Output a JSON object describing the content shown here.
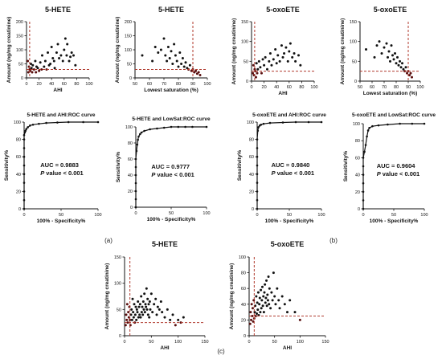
{
  "panel_labels": [
    "(a)",
    "(b)",
    "(c)"
  ],
  "chart_data": [
    {
      "type": "scatter",
      "title": "5-HETE",
      "xlabel": "AHI",
      "ylabel": "Amount (ng/mg creatinine)",
      "xlim": [
        0,
        100
      ],
      "ylim": [
        0,
        200
      ],
      "xticks": [
        "0",
        "20",
        "40",
        "60",
        "80",
        "100"
      ],
      "yticks": [
        "0",
        "50",
        "100",
        "150",
        "200"
      ],
      "cutoff_x": 5,
      "cutoff_y": 30,
      "points": [
        [
          2,
          60
        ],
        [
          3,
          20
        ],
        [
          4,
          40
        ],
        [
          5,
          30
        ],
        [
          6,
          25
        ],
        [
          7,
          50
        ],
        [
          8,
          35
        ],
        [
          9,
          20
        ],
        [
          10,
          45
        ],
        [
          12,
          30
        ],
        [
          14,
          60
        ],
        [
          15,
          20
        ],
        [
          16,
          40
        ],
        [
          18,
          35
        ],
        [
          20,
          25
        ],
        [
          22,
          55
        ],
        [
          24,
          30
        ],
        [
          25,
          80
        ],
        [
          28,
          40
        ],
        [
          30,
          60
        ],
        [
          32,
          30
        ],
        [
          34,
          90
        ],
        [
          36,
          45
        ],
        [
          38,
          50
        ],
        [
          40,
          110
        ],
        [
          42,
          70
        ],
        [
          44,
          60
        ],
        [
          45,
          35
        ],
        [
          48,
          90
        ],
        [
          50,
          120
        ],
        [
          52,
          70
        ],
        [
          55,
          80
        ],
        [
          58,
          60
        ],
        [
          60,
          100
        ],
        [
          62,
          140
        ],
        [
          64,
          80
        ],
        [
          65,
          120
        ],
        [
          68,
          60
        ],
        [
          70,
          75
        ],
        [
          72,
          90
        ],
        [
          75,
          80
        ],
        [
          78,
          45
        ]
      ]
    },
    {
      "type": "scatter",
      "title": "5-HETE",
      "xlabel": "Lowest saturation (%)",
      "ylabel": "Amount (ng/mg creatinine)",
      "xlim": [
        50,
        100
      ],
      "ylim": [
        0,
        200
      ],
      "xticks": [
        "50",
        "60",
        "70",
        "80",
        "90",
        "100"
      ],
      "yticks": [
        "0",
        "50",
        "100",
        "150",
        "200"
      ],
      "cutoff_x": 90,
      "cutoff_y": 30,
      "points": [
        [
          55,
          80
        ],
        [
          62,
          60
        ],
        [
          64,
          110
        ],
        [
          66,
          90
        ],
        [
          68,
          100
        ],
        [
          70,
          140
        ],
        [
          71,
          80
        ],
        [
          72,
          60
        ],
        [
          73,
          110
        ],
        [
          74,
          70
        ],
        [
          75,
          95
        ],
        [
          76,
          50
        ],
        [
          77,
          120
        ],
        [
          78,
          80
        ],
        [
          79,
          60
        ],
        [
          80,
          40
        ],
        [
          81,
          90
        ],
        [
          82,
          50
        ],
        [
          83,
          70
        ],
        [
          84,
          40
        ],
        [
          85,
          55
        ],
        [
          86,
          35
        ],
        [
          87,
          30
        ],
        [
          88,
          45
        ],
        [
          89,
          25
        ],
        [
          90,
          30
        ],
        [
          91,
          20
        ],
        [
          92,
          25
        ],
        [
          93,
          15
        ],
        [
          94,
          20
        ],
        [
          95,
          10
        ]
      ]
    },
    {
      "type": "scatter",
      "title": "5-oxoETE",
      "xlabel": "AHI",
      "ylabel": "Amount (ng/mg creatinine)",
      "xlim": [
        0,
        100
      ],
      "ylim": [
        0,
        150
      ],
      "xticks": [
        "0",
        "20",
        "40",
        "60",
        "80",
        "100"
      ],
      "yticks": [
        "0",
        "50",
        "100",
        "150"
      ],
      "cutoff_x": 5,
      "cutoff_y": 25,
      "points": [
        [
          2,
          20
        ],
        [
          3,
          40
        ],
        [
          4,
          15
        ],
        [
          5,
          30
        ],
        [
          6,
          25
        ],
        [
          7,
          10
        ],
        [
          8,
          45
        ],
        [
          9,
          20
        ],
        [
          10,
          30
        ],
        [
          12,
          50
        ],
        [
          14,
          35
        ],
        [
          16,
          20
        ],
        [
          18,
          55
        ],
        [
          20,
          40
        ],
        [
          22,
          60
        ],
        [
          25,
          30
        ],
        [
          28,
          50
        ],
        [
          30,
          70
        ],
        [
          32,
          40
        ],
        [
          35,
          55
        ],
        [
          38,
          80
        ],
        [
          40,
          45
        ],
        [
          42,
          65
        ],
        [
          45,
          50
        ],
        [
          48,
          90
        ],
        [
          50,
          60
        ],
        [
          52,
          70
        ],
        [
          55,
          85
        ],
        [
          58,
          50
        ],
        [
          60,
          75
        ],
        [
          62,
          95
        ],
        [
          65,
          60
        ],
        [
          68,
          70
        ],
        [
          70,
          50
        ],
        [
          75,
          65
        ],
        [
          78,
          40
        ]
      ]
    },
    {
      "type": "scatter",
      "title": "5-oxoETE",
      "xlabel": "Lowest saturation (%)",
      "ylabel": "Amount (ng/mg creatinine)",
      "xlim": [
        50,
        100
      ],
      "ylim": [
        0,
        150
      ],
      "xticks": [
        "50",
        "60",
        "70",
        "80",
        "90",
        "100"
      ],
      "yticks": [
        "0",
        "50",
        "100",
        "150"
      ],
      "cutoff_x": 90,
      "cutoff_y": 25,
      "points": [
        [
          55,
          80
        ],
        [
          62,
          60
        ],
        [
          64,
          90
        ],
        [
          66,
          100
        ],
        [
          68,
          70
        ],
        [
          70,
          85
        ],
        [
          72,
          95
        ],
        [
          73,
          60
        ],
        [
          74,
          75
        ],
        [
          75,
          50
        ],
        [
          76,
          90
        ],
        [
          77,
          65
        ],
        [
          78,
          55
        ],
        [
          79,
          70
        ],
        [
          80,
          45
        ],
        [
          81,
          60
        ],
        [
          82,
          40
        ],
        [
          83,
          50
        ],
        [
          84,
          35
        ],
        [
          85,
          45
        ],
        [
          86,
          30
        ],
        [
          87,
          25
        ],
        [
          88,
          35
        ],
        [
          89,
          20
        ],
        [
          90,
          25
        ],
        [
          91,
          15
        ],
        [
          92,
          20
        ],
        [
          93,
          10
        ]
      ]
    },
    {
      "type": "line",
      "title": "5-HETE and AHI:ROC curve",
      "xlabel": "100% - Specificity%",
      "ylabel": "Sensitivity%",
      "xlim": [
        0,
        100
      ],
      "ylim": [
        0,
        100
      ],
      "xticks": [
        "0",
        "50",
        "100"
      ],
      "yticks": [
        "0",
        "20",
        "40",
        "60",
        "80",
        "100"
      ],
      "auc_text": "AUC = 0.9883",
      "p_label": "P",
      "p_text": "value < 0.001",
      "x": [
        0,
        0,
        0,
        0,
        0,
        0,
        0,
        0,
        0,
        0,
        1,
        2,
        3,
        5,
        8,
        12,
        20,
        30,
        45,
        60,
        80,
        100
      ],
      "y": [
        0,
        10,
        20,
        30,
        40,
        50,
        60,
        70,
        80,
        85,
        88,
        90,
        92,
        94,
        96,
        97,
        98,
        99,
        99.5,
        100,
        100,
        100
      ]
    },
    {
      "type": "line",
      "title": "5-HETE and LowSat:ROC curve",
      "xlabel": "100% - Specificity%",
      "ylabel": "Sensitivity%",
      "xlim": [
        0,
        100
      ],
      "ylim": [
        0,
        100
      ],
      "xticks": [
        "0",
        "50",
        "100"
      ],
      "yticks": [
        "0",
        "20",
        "40",
        "60",
        "80",
        "100"
      ],
      "auc_text": "AUC = 0.9777",
      "p_label": "P",
      "p_text": "value < 0.001",
      "x": [
        0,
        0,
        0,
        0,
        0,
        0,
        0,
        1,
        2,
        3,
        4,
        6,
        8,
        12,
        20,
        30,
        40,
        50,
        60,
        70,
        80,
        100
      ],
      "y": [
        0,
        10,
        20,
        30,
        40,
        50,
        60,
        70,
        78,
        84,
        88,
        91,
        93,
        95,
        97,
        98,
        99,
        100,
        100,
        100,
        100,
        100
      ]
    },
    {
      "type": "line",
      "title": "5-oxoETE and AHI:ROC curve",
      "xlabel": "100% - Specificity%",
      "ylabel": "Sensitivity%",
      "xlim": [
        0,
        100
      ],
      "ylim": [
        0,
        100
      ],
      "xticks": [
        "0",
        "50",
        "100"
      ],
      "yticks": [
        "0",
        "20",
        "40",
        "60",
        "80",
        "100"
      ],
      "auc_text": "AUC = 0.9840",
      "p_label": "P",
      "p_text": "value < 0.001",
      "x": [
        0,
        0,
        0,
        0,
        0,
        0,
        0,
        0,
        0,
        1,
        2,
        4,
        6,
        10,
        20,
        40,
        60,
        80,
        100
      ],
      "y": [
        0,
        10,
        20,
        30,
        40,
        50,
        60,
        70,
        80,
        90,
        94,
        96,
        97,
        98,
        99,
        99.5,
        100,
        100,
        100
      ]
    },
    {
      "type": "line",
      "title": "5-oxoETE and LowSat:ROC curve",
      "xlabel": "100% - Specificity%",
      "ylabel": "Sensitivity%",
      "xlim": [
        0,
        100
      ],
      "ylim": [
        0,
        100
      ],
      "xticks": [
        "0",
        "50",
        "100"
      ],
      "yticks": [
        "0",
        "20",
        "40",
        "60",
        "80",
        "100"
      ],
      "auc_text": "AUC = 0.9604",
      "p_label": "P",
      "p_text": "value < 0.001",
      "x": [
        0,
        0,
        0,
        0,
        0,
        0,
        0,
        2,
        4,
        6,
        8,
        10,
        15,
        25,
        40,
        60,
        80,
        100
      ],
      "y": [
        0,
        10,
        20,
        30,
        40,
        50,
        60,
        67,
        75,
        85,
        92,
        95,
        97,
        98,
        99,
        100,
        100,
        100
      ]
    },
    {
      "type": "scatter",
      "title": "5-HETE",
      "xlabel": "AHI",
      "ylabel": "Amount (ng/mg creatinine)",
      "xlim": [
        0,
        150
      ],
      "ylim": [
        0,
        150
      ],
      "xticks": [
        "0",
        "50",
        "100",
        "150"
      ],
      "yticks": [
        "0",
        "50",
        "100",
        "150"
      ],
      "cutoff_x": 10,
      "cutoff_y": 25,
      "points": [
        [
          2,
          20
        ],
        [
          3,
          40
        ],
        [
          4,
          30
        ],
        [
          5,
          60
        ],
        [
          6,
          25
        ],
        [
          7,
          45
        ],
        [
          8,
          35
        ],
        [
          9,
          55
        ],
        [
          10,
          30
        ],
        [
          11,
          20
        ],
        [
          12,
          40
        ],
        [
          13,
          50
        ],
        [
          14,
          30
        ],
        [
          15,
          70
        ],
        [
          16,
          45
        ],
        [
          17,
          35
        ],
        [
          18,
          60
        ],
        [
          19,
          25
        ],
        [
          20,
          40
        ],
        [
          21,
          55
        ],
        [
          22,
          30
        ],
        [
          23,
          50
        ],
        [
          24,
          45
        ],
        [
          25,
          65
        ],
        [
          26,
          35
        ],
        [
          27,
          55
        ],
        [
          28,
          40
        ],
        [
          29,
          60
        ],
        [
          30,
          35
        ],
        [
          31,
          75
        ],
        [
          32,
          45
        ],
        [
          33,
          55
        ],
        [
          34,
          40
        ],
        [
          35,
          65
        ],
        [
          36,
          50
        ],
        [
          37,
          80
        ],
        [
          38,
          45
        ],
        [
          39,
          60
        ],
        [
          40,
          55
        ],
        [
          41,
          90
        ],
        [
          42,
          50
        ],
        [
          43,
          70
        ],
        [
          44,
          40
        ],
        [
          45,
          60
        ],
        [
          46,
          35
        ],
        [
          47,
          65
        ],
        [
          48,
          50
        ],
        [
          50,
          80
        ],
        [
          52,
          45
        ],
        [
          55,
          60
        ],
        [
          58,
          70
        ],
        [
          60,
          40
        ],
        [
          62,
          55
        ],
        [
          65,
          50
        ],
        [
          68,
          65
        ],
        [
          70,
          45
        ],
        [
          75,
          35
        ],
        [
          80,
          50
        ],
        [
          85,
          30
        ],
        [
          90,
          40
        ],
        [
          95,
          20
        ],
        [
          100,
          30
        ],
        [
          105,
          25
        ],
        [
          110,
          35
        ]
      ]
    },
    {
      "type": "scatter",
      "title": "5-oxoETE",
      "xlabel": "AHI",
      "ylabel": "Amount (ng/mg creatinine)",
      "xlim": [
        0,
        150
      ],
      "ylim": [
        0,
        100
      ],
      "xticks": [
        "0",
        "50",
        "100",
        "150"
      ],
      "yticks": [
        "0",
        "20",
        "40",
        "60",
        "80",
        "100"
      ],
      "cutoff_x": 10,
      "cutoff_y": 25,
      "points": [
        [
          2,
          15
        ],
        [
          3,
          30
        ],
        [
          4,
          20
        ],
        [
          5,
          40
        ],
        [
          6,
          25
        ],
        [
          7,
          35
        ],
        [
          8,
          18
        ],
        [
          9,
          45
        ],
        [
          10,
          22
        ],
        [
          11,
          30
        ],
        [
          12,
          38
        ],
        [
          13,
          25
        ],
        [
          14,
          50
        ],
        [
          15,
          28
        ],
        [
          16,
          42
        ],
        [
          17,
          33
        ],
        [
          18,
          55
        ],
        [
          19,
          26
        ],
        [
          20,
          40
        ],
        [
          21,
          48
        ],
        [
          22,
          30
        ],
        [
          23,
          58
        ],
        [
          24,
          35
        ],
        [
          25,
          45
        ],
        [
          26,
          62
        ],
        [
          27,
          38
        ],
        [
          28,
          50
        ],
        [
          29,
          30
        ],
        [
          30,
          55
        ],
        [
          31,
          65
        ],
        [
          32,
          42
        ],
        [
          33,
          48
        ],
        [
          34,
          70
        ],
        [
          35,
          38
        ],
        [
          36,
          52
        ],
        [
          37,
          45
        ],
        [
          38,
          75
        ],
        [
          39,
          40
        ],
        [
          40,
          60
        ],
        [
          42,
          35
        ],
        [
          44,
          55
        ],
        [
          46,
          45
        ],
        [
          48,
          80
        ],
        [
          50,
          50
        ],
        [
          52,
          40
        ],
        [
          55,
          60
        ],
        [
          58,
          45
        ],
        [
          60,
          35
        ],
        [
          65,
          50
        ],
        [
          70,
          40
        ],
        [
          75,
          30
        ],
        [
          80,
          45
        ],
        [
          90,
          30
        ],
        [
          100,
          20
        ]
      ]
    }
  ]
}
